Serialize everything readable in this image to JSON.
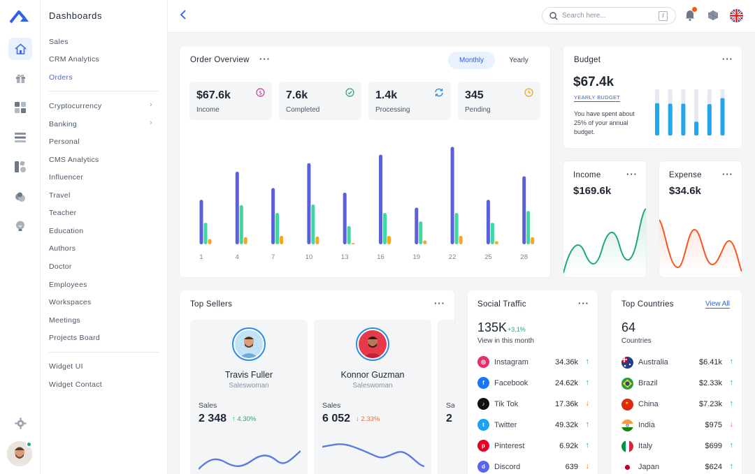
{
  "sidebar": {
    "title": "Dashboards",
    "group1": [
      "Sales",
      "CRM Analytics",
      "Orders"
    ],
    "group2": [
      "Cryptocurrency",
      "Banking",
      "Personal",
      "CMS Analytics",
      "Influencer",
      "Travel",
      "Teacher",
      "Education",
      "Authors",
      "Doctor",
      "Employees",
      "Workspaces",
      "Meetings",
      "Projects Board"
    ],
    "group3": [
      "Widget UI",
      "Widget Contact"
    ],
    "active": "Orders",
    "rail_icons": [
      "home-icon",
      "gift-icon",
      "grid-icon",
      "layers-icon",
      "apps-icon",
      "users-icon",
      "lightbulb-icon"
    ]
  },
  "topbar": {
    "search_placeholder": "Search here...",
    "search_shortcut": "/"
  },
  "order_overview": {
    "title": "Order Overview",
    "tabs": [
      "Monthly",
      "Yearly"
    ],
    "active_tab": "Monthly",
    "stats": [
      {
        "value": "$67.6k",
        "label": "Income",
        "icon": "dollar-circle-icon",
        "color": "#d6339f"
      },
      {
        "value": "7.6k",
        "label": "Completed",
        "icon": "check-circle-icon",
        "color": "#1fa971"
      },
      {
        "value": "1.4k",
        "label": "Processing",
        "icon": "refresh-icon",
        "color": "#2a8ee6"
      },
      {
        "value": "345",
        "label": "Pending",
        "icon": "clock-icon",
        "color": "#f5a623"
      }
    ]
  },
  "chart_data": {
    "type": "bar",
    "categories": [
      "1",
      "4",
      "7",
      "10",
      "13",
      "16",
      "19",
      "22",
      "25",
      "28"
    ],
    "series": [
      {
        "values": [
          68,
          111,
          86,
          124,
          79,
          137,
          56,
          149,
          68,
          104
        ],
        "color": "#5b5fdc"
      },
      {
        "values": [
          33,
          60,
          48,
          61,
          28,
          48,
          35,
          48,
          33,
          51
        ],
        "color": "#3fd8a0"
      },
      {
        "values": [
          8,
          11,
          13,
          12,
          2,
          13,
          6,
          13,
          5,
          11
        ],
        "color": "#f7a623"
      }
    ],
    "ylim": [
      0,
      160
    ]
  },
  "budget": {
    "title": "Budget",
    "value": "$67.4k",
    "tag": "YEARLY BUDGET",
    "text": "You have spent about 25% of your annual budget.",
    "bars": [
      0.7,
      0.69,
      0.69,
      0.3,
      0.68,
      0.81
    ],
    "color": "#22a7ea"
  },
  "income": {
    "title": "Income",
    "value": "$169.6k",
    "color": "#1fa971"
  },
  "expense": {
    "title": "Expense",
    "value": "$34.6k",
    "color": "#f4571e"
  },
  "top_sellers": {
    "title": "Top Sellers",
    "sellers": [
      {
        "name": "Travis Fuller",
        "role": "Saleswoman",
        "sales_label": "Sales",
        "sales": "2 348",
        "change": "4.30%",
        "trend": "up"
      },
      {
        "name": "Konnor Guzman",
        "role": "Saleswoman",
        "sales_label": "Sales",
        "sales": "6 052",
        "change": "2.33%",
        "trend": "down"
      },
      {
        "name": "",
        "role": "",
        "sales_label": "Sa",
        "sales": "2",
        "change": "",
        "trend": ""
      }
    ]
  },
  "social_traffic": {
    "title": "Social Traffic",
    "total": "135K",
    "total_change": "+3.1%",
    "subtitle": "View in this month",
    "rows": [
      {
        "name": "Instagram",
        "value": "34.36k",
        "trend": "up",
        "color": "#e1306c",
        "icon": "instagram-icon",
        "glyph": "◎"
      },
      {
        "name": "Facebook",
        "value": "24.62k",
        "trend": "up",
        "color": "#1877f2",
        "icon": "facebook-icon",
        "glyph": "f"
      },
      {
        "name": "Tik Tok",
        "value": "17.36k",
        "trend": "down",
        "color": "#111111",
        "icon": "tiktok-icon",
        "glyph": "♪"
      },
      {
        "name": "Twitter",
        "value": "49.32k",
        "trend": "up",
        "color": "#1da1f2",
        "icon": "twitter-icon",
        "glyph": "t"
      },
      {
        "name": "Pinterest",
        "value": "6.92k",
        "trend": "up",
        "color": "#e60023",
        "icon": "pinterest-icon",
        "glyph": "p"
      },
      {
        "name": "Discord",
        "value": "639",
        "trend": "down",
        "color": "#5865f2",
        "icon": "discord-icon",
        "glyph": "d"
      }
    ]
  },
  "top_countries": {
    "title": "Top Countries",
    "view_all": "View All",
    "total": "64",
    "subtitle": "Countries",
    "rows": [
      {
        "name": "Australia",
        "value": "$6.41k",
        "trend": "up",
        "flag": "australia-flag-icon"
      },
      {
        "name": "Brazil",
        "value": "$2.33k",
        "trend": "up",
        "flag": "brazil-flag-icon"
      },
      {
        "name": "China",
        "value": "$7.23k",
        "trend": "up",
        "flag": "china-flag-icon"
      },
      {
        "name": "India",
        "value": "$975",
        "trend": "down",
        "flag": "india-flag-icon"
      },
      {
        "name": "Italy",
        "value": "$699",
        "trend": "up",
        "flag": "italy-flag-icon"
      },
      {
        "name": "Japan",
        "value": "$624",
        "trend": "up",
        "flag": "japan-flag-icon"
      }
    ]
  }
}
